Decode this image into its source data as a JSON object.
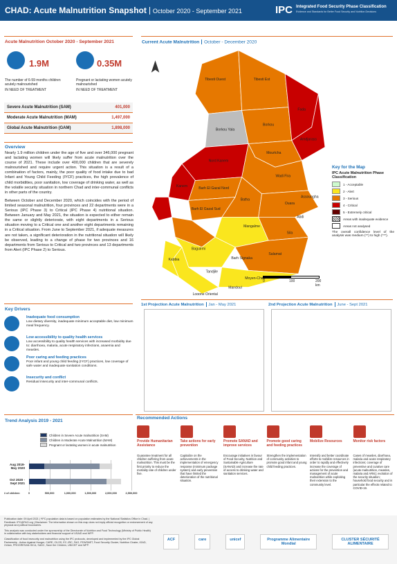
{
  "header": {
    "title": "CHAD: Acute Malnutrition Snapshot",
    "period": "October 2020 - September 2021",
    "logo": "IPC",
    "logo_title": "Integrated Food Security Phase Classification",
    "logo_tagline": "Evidence and Standards for Better Food Security and Nutrition Decisions"
  },
  "summary": {
    "title": "Acute Malnutrition October 2020 - September 2021",
    "children": {
      "figure": "1.9M",
      "label": "The number of 6-59 months children acutely malnourished",
      "need": "IN NEED OF TREATMENT"
    },
    "women": {
      "figure": "0.35M",
      "label": "Pregnant or lactating women acutely malnourished",
      "need": "IN NEED OF TREATMENT"
    },
    "table": {
      "rows": [
        [
          "Severe Acute Malnutrition (SAM)",
          "401,000"
        ],
        [
          "Moderate Acute Malnutrition (MAM)",
          "1,497,000"
        ],
        [
          "Global Acute Malnutrition (GAM)",
          "1,898,000"
        ]
      ]
    }
  },
  "overview": {
    "title": "Overview",
    "paragraphs": [
      "Nearly 1.9 million children under the age of five and over 346,000 pregnant and lactating women will likely suffer from acute malnutrition over the course of 2021. These include over 400,000 children that are severely malnourished and require urgent action. This situation is a result of a combination of factors, mainly, the poor quality of food intake due to bad Infant and Young Child Feeding (IYCF) practices, the high prevalence of child morbidities, poor sanitation, low coverage of drinking water, as well as the volatile security situation in northern Chad and inter-communal conflicts in other parts of the country.",
      "Between October and December 2020, which coincides with the period of limited seasonal malnutrition, four provinces and 22 departments were in a Serious (IPC Phase 3) to Critical (IPC Phase 4) nutritional situation. Between January and May 2021, the situation is expected to either remain the same or slightly deteriorate, with eight departments in a Serious situation moving to a Critical one and another eight departments remaining in a Critical situation. From June to September 2021, if adequate measures are not taken, a significant deterioration in the nutritional situation will likely be observed, leading to a change of phase for two provinces and 16 departments from Serious to Critical and two provinces and 13 departments from Alert (IPC Phase 2) to Serious."
    ]
  },
  "key_drivers": {
    "title": "Key Drivers",
    "items": [
      {
        "title": "Inadequate food consumption",
        "text": "Low dietary diversity, inadequate minimum acceptable diet, low minimum meal frequency."
      },
      {
        "title": "Low accessibility to quality health services",
        "text": "Low accessibility to quality health services with increased morbidity due to: diarrhoea, malaria, acute respiratory infections, anaemia and measles."
      },
      {
        "title": "Poor caring and feeding practices",
        "text": "Poor infant and young child feeding (IYCF) practices, low coverage of safe water and inadequate sanitation conditions."
      },
      {
        "title": "Insecurity and conflict",
        "text": "Residual insecurity and inter-communal conflicts."
      }
    ]
  },
  "map": {
    "title": "Current Acute Malnutrition",
    "period": "October - December 2020",
    "regions": [
      "Tibesti Ouest",
      "Tibesti Est",
      "Borkou Yala",
      "Borkou",
      "Fada",
      "Amdjarass",
      "Mourtcha",
      "Nord Kanem",
      "Kanem",
      "Barh El Gazal Nord",
      "Wadi Fira",
      "Batha",
      "Barh El Gazal Sud",
      "Ouara",
      "Assoungha",
      "Abdi",
      "Mangalme",
      "Sila",
      "Baguirmi",
      "Barh Signaka",
      "Salamat",
      "Tandjile",
      "Moyen-Chari",
      "Kabbia",
      "Mandoul",
      "Logone Oriental"
    ],
    "scale": [
      "0",
      "100",
      "200 km"
    ],
    "legend": {
      "title": "Key for the Map",
      "subtitle": "IPC Acute Malnutrition Phase Classification",
      "phases": [
        {
          "label": "1 - Acceptable",
          "color": "#cdfacd"
        },
        {
          "label": "2 - Alert",
          "color": "#fae61e"
        },
        {
          "label": "3 - Serious",
          "color": "#e67800"
        },
        {
          "label": "4 - Critical",
          "color": "#c80000"
        },
        {
          "label": "5 - Extremely critical",
          "color": "#640000"
        }
      ],
      "other": [
        "Areas with inadequate evidence",
        "Areas not analysed"
      ],
      "note": "The overall confidence level of the analysis was medium (**) to high (***)."
    }
  },
  "projections": [
    {
      "title": "1st Projection Acute Malnutrition",
      "period": "Jan - May 2021"
    },
    {
      "title": "2nd Projection Acute Malnutrition",
      "period": "June - Sept 2021"
    }
  ],
  "chart_data": {
    "type": "bar",
    "title": "Trend Analysis 2019 - 2021",
    "orientation": "horizontal",
    "stacked": true,
    "categories": [
      "Aug 2019- May 2020",
      "Oct 2020 - Sept 2021"
    ],
    "series": [
      {
        "name": "Children in Severe Acute malnutrition (SAM)",
        "color": "#1f3864",
        "values": [
          380000,
          401000
        ]
      },
      {
        "name": "Children in Moderate Acute Malnutrition (MAM)",
        "color": "#7f8c9f",
        "values": [
          1350000,
          1497000
        ]
      },
      {
        "name": "Pregnant or lactating women in acute malnutrition",
        "color": "#d9d9d9",
        "values": [
          300000,
          346000
        ]
      }
    ],
    "xlabel": "# of children",
    "xlim": [
      0,
      2500000
    ],
    "xticks": [
      0,
      {
        "value": 500000,
        "label": "500,000"
      },
      {
        "value": 1000000,
        "label": "1,000,000"
      },
      {
        "value": 1500000,
        "label": "1,500,000"
      },
      {
        "value": 2000000,
        "label": "2,000,000"
      },
      {
        "value": 2500000,
        "label": "2,500,000"
      }
    ]
  },
  "recommendations": {
    "title": "Recommended Actions",
    "items": [
      {
        "title": "Provide Humanitarian Assistance",
        "text": "Guarantee treatment for all children suffering from acute malnutrition. This must be the first priority to reduce the mortality rate of children under five."
      },
      {
        "title": "Take actions for early prevention",
        "text": "Capitalize on the achievements in the implementation of emergency response (minimum package system) and early prevention that have limited the deterioration of the nutritional situation."
      },
      {
        "title": "Promote SANAD and improve services",
        "text": "Encourage initiatives in favour of Food Security, Nutrition and Sustainable Agriculture (SANAD) and increase the rate of access to drinking water and sanitation services."
      },
      {
        "title": "Promote good caring and feeding practices",
        "text": "Strengthen the implementation of community activities to promote good infant and young child feeding practices."
      },
      {
        "title": "Mobilize Resources",
        "text": "Intensify and better coordinate efforts to mobilize resources in order to rapidly and effectively increase the coverage of actions for the prevention and management of acute malnutrition while exploiting their extension to the community level."
      },
      {
        "title": "Monitor risk factors",
        "text": "Cases of measles, diarrhoea, malaria and acute respiratory infections; coverage of preventive and curative care (acute malnutrition, measles, malaria and ARIs); evolution of the security situation; household food security and in particular the effects related to COVID-19."
      }
    ]
  },
  "footer": {
    "notes": [
      "Publication date: 09 April 2021 | *IPC population data is based on population estimates by the National Statistics Office in Chad. | Feedback: IPC@FAO.org | Disclaimer: The information shown on this map does not imply official recognition or endorsement of any physical and political boundaries.",
      "This analysis was conducted under the sponsorship of the Directorate of Nutrition and Food Technology (Ministry of Public Health) in collaboration with key stakeholders and financial support of USAID and WFP.",
      "Classification of food insecurity and malnutrition using the IPC protocols, developed and implemented by the IPC Global Partnership - Action Against Hunger, CARE, CILSS, EC-JRC, FAO, FEWSNET, Food Security Cluster, Nutrition Cluster, IGAD, Oxfam, PROGRESAN-SICA, SADC, Save the Children, UNICEF and WFP."
    ],
    "logos": [
      "ACF",
      "care",
      "unicef",
      "Programme Alimentaire Mondial",
      "CLUSTER SÉCURITÉ ALIMENTAIRE"
    ]
  }
}
